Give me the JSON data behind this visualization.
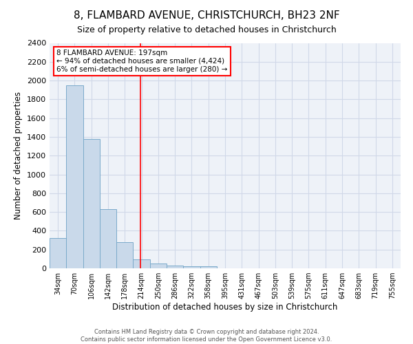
{
  "title": "8, FLAMBARD AVENUE, CHRISTCHURCH, BH23 2NF",
  "subtitle": "Size of property relative to detached houses in Christchurch",
  "xlabel": "Distribution of detached houses by size in Christchurch",
  "ylabel": "Number of detached properties",
  "footer": "Contains HM Land Registry data © Crown copyright and database right 2024.\nContains public sector information licensed under the Open Government Licence v3.0.",
  "bin_labels": [
    "34sqm",
    "70sqm",
    "106sqm",
    "142sqm",
    "178sqm",
    "214sqm",
    "250sqm",
    "286sqm",
    "322sqm",
    "358sqm",
    "395sqm",
    "431sqm",
    "467sqm",
    "503sqm",
    "539sqm",
    "575sqm",
    "611sqm",
    "647sqm",
    "683sqm",
    "719sqm",
    "755sqm"
  ],
  "bar_heights": [
    320,
    1950,
    1375,
    630,
    280,
    95,
    48,
    30,
    25,
    20,
    0,
    0,
    0,
    0,
    0,
    0,
    0,
    0,
    0,
    0,
    0
  ],
  "bar_color": "#c9d9ea",
  "bar_edge_color": "#7aaaca",
  "vline_x": 4.94,
  "vline_color": "red",
  "annotation_text": "8 FLAMBARD AVENUE: 197sqm\n← 94% of detached houses are smaller (4,424)\n6% of semi-detached houses are larger (280) →",
  "annotation_box_color": "white",
  "annotation_box_edge": "red",
  "ylim": [
    0,
    2400
  ],
  "yticks": [
    0,
    200,
    400,
    600,
    800,
    1000,
    1200,
    1400,
    1600,
    1800,
    2000,
    2200,
    2400
  ],
  "grid_color": "#d0d8e8",
  "background_color": "#eef2f8",
  "title_fontsize": 11,
  "subtitle_fontsize": 9
}
